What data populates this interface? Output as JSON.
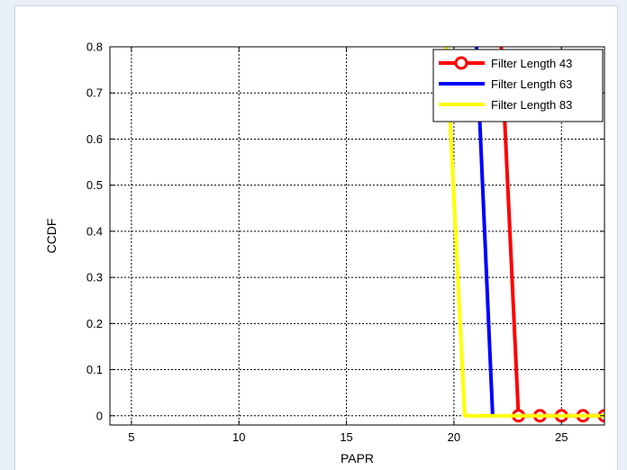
{
  "chart_data": {
    "type": "line",
    "xlabel": "PAPR",
    "ylabel": "CCDF",
    "xlim": [
      4,
      27
    ],
    "ylim": [
      -0.02,
      0.8
    ],
    "xticks": [
      5,
      10,
      15,
      20,
      25
    ],
    "yticks": [
      0,
      0.1,
      0.2,
      0.3,
      0.4,
      0.5,
      0.6,
      0.7,
      0.8
    ],
    "xtick_labels": [
      "5",
      "10",
      "15",
      "20",
      "25"
    ],
    "ytick_labels": [
      "0",
      "0.1",
      "0.2",
      "0.3",
      "0.4",
      "0.5",
      "0.6",
      "0.7",
      "0.8"
    ],
    "grid": true,
    "legend_position": "top-right",
    "series": [
      {
        "name": "Filter Length 43",
        "color": "#ff0000",
        "marker": "circle",
        "x": [
          22.2,
          23.0,
          24.0,
          25.0,
          26.0,
          27.0
        ],
        "y": [
          0.8,
          0.0,
          0.0,
          0.0,
          0.0,
          0.0
        ],
        "marker_x": [
          23.0,
          24.0,
          25.0,
          26.0,
          27.0
        ],
        "marker_y": [
          0.0,
          0.0,
          0.0,
          0.0,
          0.0
        ]
      },
      {
        "name": "Filter Length 63",
        "color": "#0000ff",
        "marker": "none",
        "x": [
          21.05,
          21.8
        ],
        "y": [
          0.8,
          0.0
        ]
      },
      {
        "name": "Filter Length 83",
        "color": "#ffff00",
        "marker": "none",
        "x": [
          19.65,
          20.5,
          27.0
        ],
        "y": [
          0.8,
          0.0,
          0.0
        ]
      }
    ]
  }
}
